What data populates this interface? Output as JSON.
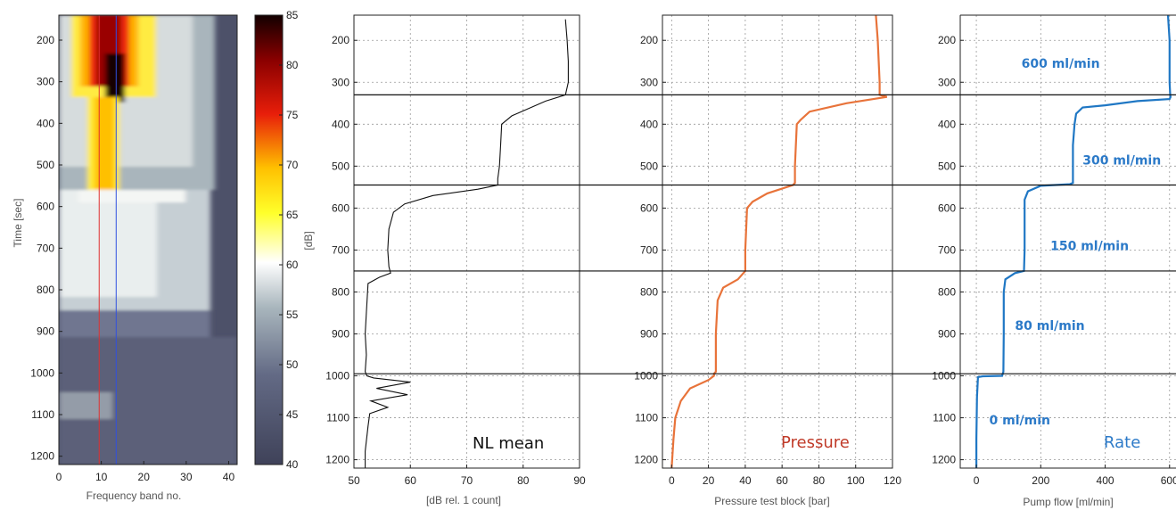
{
  "chart_data": [
    {
      "type": "heatmap",
      "xlabel": "Frequency band no.",
      "ylabel": "Time [sec]",
      "xlim": [
        0,
        42
      ],
      "ylim": [
        1220,
        140
      ],
      "x_ticks": [
        0,
        10,
        20,
        30,
        40
      ],
      "y_ticks": [
        200,
        300,
        400,
        500,
        600,
        700,
        800,
        900,
        1000,
        1100,
        1200
      ],
      "colorbar": {
        "label": "[dB]",
        "range": [
          40,
          85
        ],
        "ticks": [
          40,
          45,
          50,
          55,
          60,
          65,
          70,
          75,
          80,
          85
        ]
      },
      "vertical_markers": [
        {
          "x": 9.5,
          "color": "#e03030"
        },
        {
          "x": 13.5,
          "color": "#3050e0"
        }
      ]
    },
    {
      "type": "line",
      "annotation": "NL mean",
      "xlabel": "[dB rel. 1 count]",
      "xlim": [
        50,
        90
      ],
      "ylim": [
        1220,
        140
      ],
      "x_ticks": [
        50,
        60,
        70,
        80,
        90
      ],
      "y_ticks": [
        200,
        300,
        400,
        500,
        600,
        700,
        800,
        900,
        1000,
        1100,
        1200
      ],
      "grid": true,
      "series_color": "#111111",
      "x": [
        87.5,
        87.8,
        88.0,
        88.0,
        87.5,
        84.0,
        78.0,
        76.2,
        76.0,
        75.8,
        75.5,
        75.5,
        72.0,
        64.0,
        59.0,
        57.0,
        56.2,
        56.0,
        56.2,
        56.5,
        54.5,
        52.5,
        52.2,
        52.0,
        52.2,
        52.0,
        52.3,
        53.5,
        60.0,
        54.0,
        59.5,
        53.0,
        56.0,
        52.8,
        52.5,
        52.0,
        52.0
      ],
      "y": [
        150,
        200,
        250,
        300,
        330,
        345,
        380,
        400,
        450,
        500,
        530,
        545,
        555,
        570,
        590,
        610,
        650,
        700,
        740,
        755,
        765,
        780,
        850,
        900,
        950,
        990,
        1000,
        1005,
        1015,
        1030,
        1045,
        1060,
        1075,
        1090,
        1120,
        1180,
        1220
      ]
    },
    {
      "type": "line",
      "annotation": "Pressure",
      "xlabel": "Pressure test block [bar]",
      "xlim": [
        -5,
        120
      ],
      "ylim": [
        1220,
        140
      ],
      "x_ticks": [
        0,
        20,
        40,
        60,
        80,
        100,
        120
      ],
      "y_ticks": [
        200,
        300,
        400,
        500,
        600,
        700,
        800,
        900,
        1000,
        1100,
        1200
      ],
      "grid": true,
      "series_color": "#e8733a",
      "x": [
        111,
        112,
        113,
        113,
        117,
        95,
        75,
        70,
        68,
        67,
        67,
        66,
        52,
        44,
        41,
        40,
        40,
        39,
        36,
        28,
        25,
        24,
        24,
        23,
        23,
        20,
        10,
        5,
        2,
        1,
        0
      ],
      "y": [
        140,
        200,
        300,
        330,
        335,
        350,
        370,
        390,
        400,
        500,
        540,
        545,
        565,
        585,
        600,
        700,
        750,
        755,
        770,
        790,
        820,
        900,
        990,
        995,
        1000,
        1010,
        1030,
        1060,
        1100,
        1150,
        1220
      ]
    },
    {
      "type": "line",
      "annotation": "Rate",
      "xlabel": "Pump flow [ml/min]",
      "xlim": [
        -50,
        620
      ],
      "ylim": [
        1220,
        140
      ],
      "x_ticks": [
        0,
        200,
        400,
        600
      ],
      "y_ticks": [
        200,
        300,
        400,
        500,
        600,
        700,
        800,
        900,
        1000,
        1100,
        1200
      ],
      "grid": true,
      "series_color": "#1f77c4",
      "x": [
        595,
        600,
        600,
        602,
        603,
        600,
        500,
        400,
        330,
        310,
        305,
        300,
        300,
        290,
        200,
        160,
        150,
        150,
        148,
        120,
        90,
        85,
        85,
        84,
        80,
        20,
        5,
        2,
        0,
        0
      ],
      "y": [
        140,
        200,
        300,
        330,
        335,
        340,
        345,
        355,
        360,
        375,
        400,
        450,
        540,
        543,
        547,
        560,
        580,
        700,
        750,
        755,
        770,
        800,
        900,
        990,
        1000,
        1001,
        1003,
        1050,
        1150,
        1220
      ],
      "labels": [
        {
          "text": "600 ml/min",
          "x": 140,
          "y": 255
        },
        {
          "text": "300 ml/min",
          "x": 330,
          "y": 485
        },
        {
          "text": "150 ml/min",
          "x": 230,
          "y": 690
        },
        {
          "text": "80 ml/min",
          "x": 120,
          "y": 880
        },
        {
          "text": "0 ml/min",
          "x": 40,
          "y": 1105
        }
      ]
    }
  ],
  "reference_lines_y": [
    330,
    545,
    750,
    995
  ]
}
